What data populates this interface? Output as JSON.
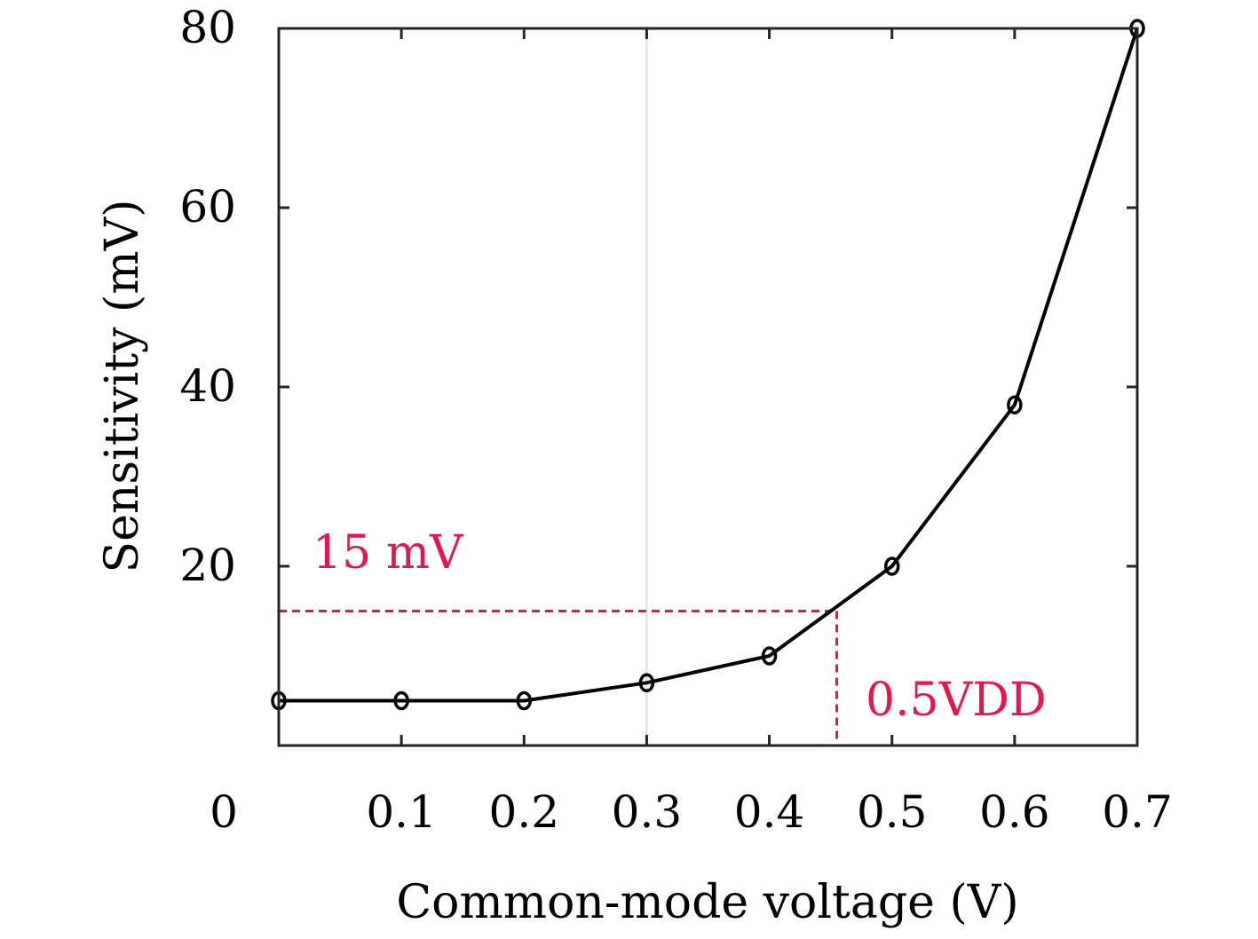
{
  "chart_data": {
    "type": "line",
    "xlabel": "Common-mode voltage (V)",
    "ylabel": "Sensitivity (mV)",
    "xlim": [
      0,
      0.7
    ],
    "ylim": [
      0,
      80
    ],
    "x_ticks": [
      "0",
      "0.1",
      "0.2",
      "0.3",
      "0.4",
      "0.5",
      "0.6",
      "0.7"
    ],
    "y_ticks": [
      "20",
      "40",
      "60",
      "80"
    ],
    "x": [
      0,
      0.1,
      0.2,
      0.3,
      0.4,
      0.5,
      0.6,
      0.7
    ],
    "series": [
      {
        "values": [
          5,
          5,
          5,
          7,
          10,
          20,
          38,
          80
        ],
        "color": "#000000",
        "marker": "circle-open"
      }
    ],
    "gridlines_x": [
      0.3
    ],
    "annotations": {
      "threshold_label": "15 mV",
      "threshold_value": 15,
      "intersection_x": 0.455,
      "intersection_label": "0.5VDD",
      "color": "#e8134f"
    }
  }
}
